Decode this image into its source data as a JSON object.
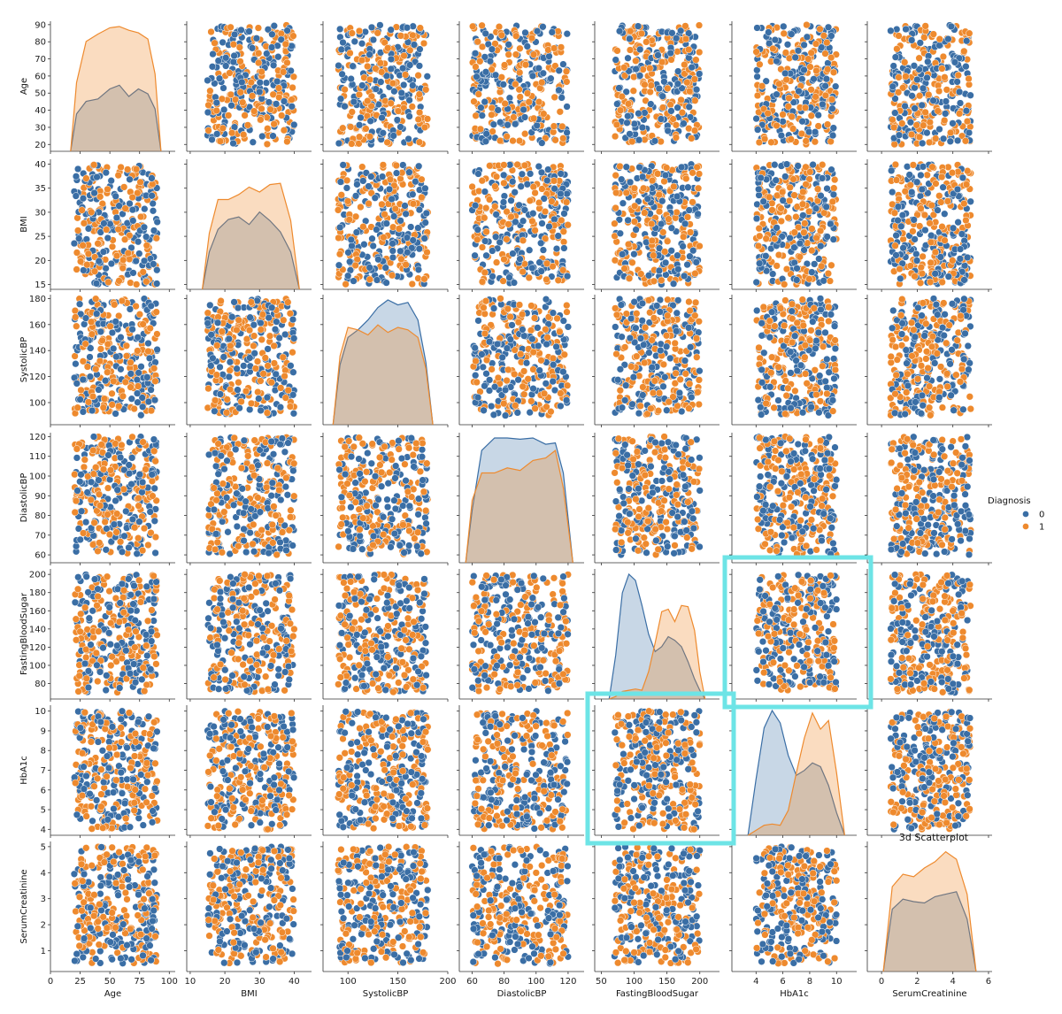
{
  "chart_data": {
    "type": "scatter",
    "subtype": "pairplot",
    "hue": "Diagnosis",
    "variables": [
      "Age",
      "BMI",
      "SystolicBP",
      "DiastolicBP",
      "FastingBloodSugar",
      "HbA1c",
      "SerumCreatinine"
    ],
    "ranges": {
      "Age": [
        20,
        90
      ],
      "BMI": [
        15,
        40
      ],
      "SystolicBP": [
        90,
        180
      ],
      "DiastolicBP": [
        60,
        120
      ],
      "FastingBloodSugar": [
        70,
        200
      ],
      "HbA1c": [
        4,
        10
      ],
      "SerumCreatinine": [
        0.5,
        5
      ]
    },
    "xlim": {
      "Age": [
        0,
        105
      ],
      "BMI": [
        9,
        45
      ],
      "SystolicBP": [
        75,
        200
      ],
      "DiastolicBP": [
        52,
        130
      ],
      "FastingBloodSugar": [
        40,
        230
      ],
      "HbA1c": [
        2.2,
        11.5
      ],
      "SerumCreatinine": [
        -0.8,
        6.2
      ]
    },
    "ylim": {
      "Age": [
        16,
        92
      ],
      "BMI": [
        14,
        41
      ],
      "SystolicBP": [
        83,
        183
      ],
      "DiastolicBP": [
        56,
        122
      ],
      "FastingBloodSugar": [
        63,
        206
      ],
      "HbA1c": [
        3.7,
        10.3
      ],
      "SerumCreatinine": [
        0.2,
        5.2
      ]
    },
    "xticks": {
      "Age": [
        0,
        25,
        50,
        75,
        100
      ],
      "BMI": [
        10,
        20,
        30,
        40
      ],
      "SystolicBP": [
        100,
        150,
        200
      ],
      "DiastolicBP": [
        60,
        80,
        100,
        120
      ],
      "FastingBloodSugar": [
        50,
        100,
        150,
        200
      ],
      "HbA1c": [
        4,
        6,
        8,
        10
      ],
      "SerumCreatinine": [
        0,
        2,
        4,
        6
      ]
    },
    "yticks": {
      "Age": [
        20,
        30,
        40,
        50,
        60,
        70,
        80,
        90
      ],
      "BMI": [
        15,
        20,
        25,
        30,
        35,
        40
      ],
      "SystolicBP": [
        100,
        120,
        140,
        160,
        180
      ],
      "DiastolicBP": [
        60,
        70,
        80,
        90,
        100,
        110,
        120
      ],
      "FastingBloodSugar": [
        80,
        100,
        120,
        140,
        160,
        180,
        200
      ],
      "HbA1c": [
        4,
        5,
        6,
        7,
        8,
        9,
        10
      ],
      "SerumCreatinine": [
        1,
        2,
        3,
        4,
        5
      ]
    },
    "series": [
      {
        "name": "0",
        "color": "#3a6ea5"
      },
      {
        "name": "1",
        "color": "#ee8a2e"
      }
    ],
    "kde": {
      "Age": {
        "1": [
          [
            17,
            0.0
          ],
          [
            22,
            0.55
          ],
          [
            30,
            0.88
          ],
          [
            40,
            0.94
          ],
          [
            50,
            0.99
          ],
          [
            58,
            1.0
          ],
          [
            66,
            0.97
          ],
          [
            74,
            0.95
          ],
          [
            82,
            0.9
          ],
          [
            88,
            0.62
          ],
          [
            93,
            0.0
          ]
        ],
        "0": [
          [
            17,
            0.0
          ],
          [
            22,
            0.3
          ],
          [
            30,
            0.4
          ],
          [
            40,
            0.42
          ],
          [
            50,
            0.5
          ],
          [
            58,
            0.53
          ],
          [
            66,
            0.44
          ],
          [
            74,
            0.5
          ],
          [
            82,
            0.46
          ],
          [
            88,
            0.34
          ],
          [
            93,
            0.0
          ]
        ]
      },
      "BMI": {
        "1": [
          [
            13.5,
            0.0
          ],
          [
            15.5,
            0.45
          ],
          [
            18,
            0.72
          ],
          [
            21,
            0.72
          ],
          [
            24,
            0.76
          ],
          [
            27,
            0.82
          ],
          [
            30,
            0.78
          ],
          [
            33,
            0.84
          ],
          [
            36,
            0.85
          ],
          [
            39,
            0.55
          ],
          [
            41.5,
            0.0
          ]
        ],
        "0": [
          [
            13.5,
            0.0
          ],
          [
            15.5,
            0.3
          ],
          [
            18,
            0.48
          ],
          [
            21,
            0.56
          ],
          [
            24,
            0.58
          ],
          [
            27,
            0.52
          ],
          [
            30,
            0.62
          ],
          [
            33,
            0.55
          ],
          [
            36,
            0.46
          ],
          [
            39,
            0.3
          ],
          [
            41.5,
            0.0
          ]
        ]
      },
      "SystolicBP": {
        "1": [
          [
            85,
            0.0
          ],
          [
            92,
            0.55
          ],
          [
            100,
            0.78
          ],
          [
            110,
            0.76
          ],
          [
            120,
            0.72
          ],
          [
            130,
            0.8
          ],
          [
            140,
            0.74
          ],
          [
            150,
            0.78
          ],
          [
            160,
            0.76
          ],
          [
            170,
            0.7
          ],
          [
            178,
            0.45
          ],
          [
            185,
            0.0
          ]
        ],
        "0": [
          [
            85,
            0.0
          ],
          [
            92,
            0.48
          ],
          [
            100,
            0.7
          ],
          [
            110,
            0.76
          ],
          [
            120,
            0.84
          ],
          [
            130,
            0.94
          ],
          [
            140,
            1.0
          ],
          [
            150,
            0.96
          ],
          [
            160,
            0.98
          ],
          [
            170,
            0.84
          ],
          [
            178,
            0.5
          ],
          [
            185,
            0.0
          ]
        ]
      },
      "DiastolicBP": {
        "1": [
          [
            56,
            0.0
          ],
          [
            60,
            0.5
          ],
          [
            66,
            0.72
          ],
          [
            74,
            0.72
          ],
          [
            82,
            0.76
          ],
          [
            90,
            0.74
          ],
          [
            98,
            0.82
          ],
          [
            106,
            0.84
          ],
          [
            112,
            0.9
          ],
          [
            117,
            0.6
          ],
          [
            123,
            0.0
          ]
        ],
        "0": [
          [
            56,
            0.0
          ],
          [
            60,
            0.42
          ],
          [
            66,
            0.9
          ],
          [
            74,
            1.0
          ],
          [
            82,
            1.0
          ],
          [
            90,
            0.99
          ],
          [
            98,
            1.0
          ],
          [
            106,
            0.95
          ],
          [
            112,
            0.96
          ],
          [
            117,
            0.72
          ],
          [
            123,
            0.0
          ]
        ]
      },
      "FastingBloodSugar": {
        "1": [
          [
            62,
            0.0
          ],
          [
            72,
            0.02
          ],
          [
            82,
            0.06
          ],
          [
            92,
            0.07
          ],
          [
            102,
            0.08
          ],
          [
            112,
            0.07
          ],
          [
            122,
            0.22
          ],
          [
            132,
            0.45
          ],
          [
            142,
            0.7
          ],
          [
            152,
            0.72
          ],
          [
            162,
            0.62
          ],
          [
            172,
            0.75
          ],
          [
            182,
            0.74
          ],
          [
            192,
            0.55
          ],
          [
            200,
            0.22
          ],
          [
            208,
            0.0
          ]
        ],
        "0": [
          [
            62,
            0.0
          ],
          [
            72,
            0.35
          ],
          [
            82,
            0.85
          ],
          [
            92,
            1.0
          ],
          [
            102,
            0.95
          ],
          [
            112,
            0.75
          ],
          [
            122,
            0.52
          ],
          [
            132,
            0.38
          ],
          [
            142,
            0.42
          ],
          [
            152,
            0.5
          ],
          [
            162,
            0.47
          ],
          [
            172,
            0.42
          ],
          [
            182,
            0.3
          ],
          [
            192,
            0.16
          ],
          [
            200,
            0.07
          ],
          [
            208,
            0.0
          ]
        ]
      },
      "HbA1c": {
        "1": [
          [
            3.4,
            0.0
          ],
          [
            4.0,
            0.04
          ],
          [
            4.6,
            0.08
          ],
          [
            5.2,
            0.09
          ],
          [
            5.8,
            0.08
          ],
          [
            6.4,
            0.2
          ],
          [
            7.0,
            0.5
          ],
          [
            7.6,
            0.78
          ],
          [
            8.2,
            0.98
          ],
          [
            8.8,
            0.85
          ],
          [
            9.4,
            0.92
          ],
          [
            10.0,
            0.5
          ],
          [
            10.6,
            0.0
          ]
        ],
        "0": [
          [
            3.4,
            0.0
          ],
          [
            4.0,
            0.45
          ],
          [
            4.6,
            0.86
          ],
          [
            5.2,
            1.0
          ],
          [
            5.8,
            0.9
          ],
          [
            6.4,
            0.64
          ],
          [
            7.0,
            0.48
          ],
          [
            7.6,
            0.52
          ],
          [
            8.2,
            0.58
          ],
          [
            8.8,
            0.55
          ],
          [
            9.4,
            0.4
          ],
          [
            10.0,
            0.18
          ],
          [
            10.6,
            0.0
          ]
        ]
      },
      "SerumCreatinine": {
        "1": [
          [
            0.1,
            0.0
          ],
          [
            0.6,
            0.68
          ],
          [
            1.2,
            0.78
          ],
          [
            1.8,
            0.76
          ],
          [
            2.4,
            0.83
          ],
          [
            3.0,
            0.88
          ],
          [
            3.6,
            0.96
          ],
          [
            4.2,
            0.9
          ],
          [
            4.8,
            0.62
          ],
          [
            5.3,
            0.0
          ]
        ],
        "0": [
          [
            0.1,
            0.0
          ],
          [
            0.6,
            0.5
          ],
          [
            1.2,
            0.58
          ],
          [
            1.8,
            0.56
          ],
          [
            2.4,
            0.55
          ],
          [
            3.0,
            0.6
          ],
          [
            3.6,
            0.62
          ],
          [
            4.2,
            0.64
          ],
          [
            4.8,
            0.42
          ],
          [
            5.3,
            0.0
          ]
        ]
      }
    },
    "legend": {
      "title": "Diagnosis",
      "labels": [
        "0",
        "1"
      ],
      "placement": "right"
    },
    "annotation": {
      "text": "3d Scatterplot"
    },
    "highlights": [
      {
        "row": "FastingBloodSugar",
        "col": "HbA1c",
        "color": "#6de4e6"
      },
      {
        "row": "HbA1c",
        "col": "FastingBloodSugar",
        "color": "#6de4e6"
      }
    ]
  }
}
